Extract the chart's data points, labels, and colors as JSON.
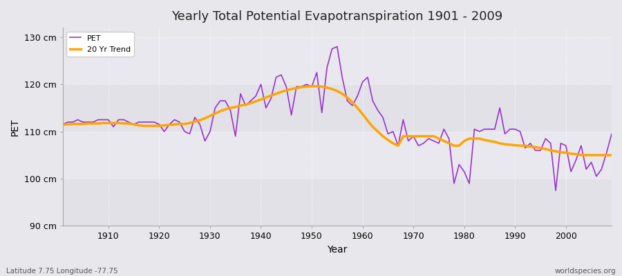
{
  "title": "Yearly Total Potential Evapotranspiration 1901 - 2009",
  "xlabel": "Year",
  "ylabel": "PET",
  "subtitle_left": "Latitude 7.75 Longitude -77.75",
  "subtitle_right": "worldspecies.org",
  "pet_color": "#9933cc",
  "trend_color": "#ffa500",
  "fig_bg_color": "#f0f0f0",
  "plot_bg_color": "#e8e8ec",
  "ylim": [
    90,
    132
  ],
  "yticks": [
    90,
    100,
    110,
    120,
    130
  ],
  "ytick_labels": [
    "90 cm",
    "100 cm",
    "110 cm",
    "120 cm",
    "130 cm"
  ],
  "years": [
    1901,
    1902,
    1903,
    1904,
    1905,
    1906,
    1907,
    1908,
    1909,
    1910,
    1911,
    1912,
    1913,
    1914,
    1915,
    1916,
    1917,
    1918,
    1919,
    1920,
    1921,
    1922,
    1923,
    1924,
    1925,
    1926,
    1927,
    1928,
    1929,
    1930,
    1931,
    1932,
    1933,
    1934,
    1935,
    1936,
    1937,
    1938,
    1939,
    1940,
    1941,
    1942,
    1943,
    1944,
    1945,
    1946,
    1947,
    1948,
    1949,
    1950,
    1951,
    1952,
    1953,
    1954,
    1955,
    1956,
    1957,
    1958,
    1959,
    1960,
    1961,
    1962,
    1963,
    1964,
    1965,
    1966,
    1967,
    1968,
    1969,
    1970,
    1971,
    1972,
    1973,
    1974,
    1975,
    1976,
    1977,
    1978,
    1979,
    1980,
    1981,
    1982,
    1983,
    1984,
    1985,
    1986,
    1987,
    1988,
    1989,
    1990,
    1991,
    1992,
    1993,
    1994,
    1995,
    1996,
    1997,
    1998,
    1999,
    2000,
    2001,
    2002,
    2003,
    2004,
    2005,
    2006,
    2007,
    2008,
    2009
  ],
  "pet_values": [
    111.5,
    112.0,
    112.0,
    112.5,
    112.0,
    112.0,
    112.0,
    112.5,
    112.5,
    112.5,
    111.0,
    112.5,
    112.5,
    112.0,
    111.5,
    112.0,
    112.0,
    112.0,
    112.0,
    111.5,
    110.0,
    111.5,
    112.5,
    112.0,
    110.0,
    109.5,
    113.0,
    111.5,
    108.0,
    110.0,
    115.0,
    116.5,
    116.5,
    114.5,
    109.0,
    118.0,
    115.5,
    116.5,
    117.5,
    120.0,
    115.0,
    117.0,
    121.5,
    122.0,
    119.5,
    113.5,
    119.5,
    119.5,
    120.0,
    119.5,
    122.5,
    114.0,
    123.5,
    127.5,
    128.0,
    121.5,
    116.5,
    115.5,
    117.5,
    120.5,
    121.5,
    116.5,
    114.5,
    113.0,
    109.5,
    110.0,
    107.0,
    112.5,
    108.0,
    109.0,
    107.0,
    107.5,
    108.5,
    108.0,
    107.5,
    110.5,
    108.5,
    99.0,
    103.0,
    101.5,
    99.0,
    110.5,
    110.0,
    110.5,
    110.5,
    110.5,
    115.0,
    109.5,
    110.5,
    110.5,
    110.0,
    106.5,
    107.5,
    106.0,
    106.0,
    108.5,
    107.5,
    97.5,
    107.5,
    107.0,
    101.5,
    104.0,
    107.0,
    102.0,
    103.5,
    100.5,
    102.0,
    105.5,
    109.5
  ],
  "trend_values": [
    111.5,
    111.5,
    111.6,
    111.6,
    111.6,
    111.7,
    111.7,
    111.7,
    111.8,
    111.8,
    111.8,
    111.8,
    111.7,
    111.7,
    111.5,
    111.3,
    111.2,
    111.2,
    111.2,
    111.2,
    111.3,
    111.4,
    111.5,
    111.6,
    111.6,
    111.8,
    112.1,
    112.4,
    112.8,
    113.3,
    113.8,
    114.3,
    114.7,
    115.0,
    115.2,
    115.5,
    115.7,
    116.0,
    116.4,
    116.8,
    117.2,
    117.6,
    118.0,
    118.4,
    118.7,
    119.0,
    119.2,
    119.4,
    119.5,
    119.6,
    119.6,
    119.5,
    119.3,
    119.0,
    118.6,
    118.0,
    117.2,
    116.2,
    115.0,
    113.7,
    112.3,
    111.0,
    110.0,
    109.0,
    108.2,
    107.5,
    107.0,
    109.0,
    109.0,
    109.0,
    109.0,
    109.0,
    109.0,
    109.0,
    108.5,
    108.0,
    107.5,
    107.0,
    107.0,
    108.0,
    108.5,
    108.5,
    108.5,
    108.2,
    108.0,
    107.8,
    107.5,
    107.3,
    107.2,
    107.1,
    107.0,
    107.0,
    106.8,
    106.7,
    106.5,
    106.3,
    106.0,
    105.8,
    105.6,
    105.5,
    105.3,
    105.2,
    105.0,
    105.0,
    105.0,
    105.0,
    105.0,
    105.0,
    105.0
  ]
}
